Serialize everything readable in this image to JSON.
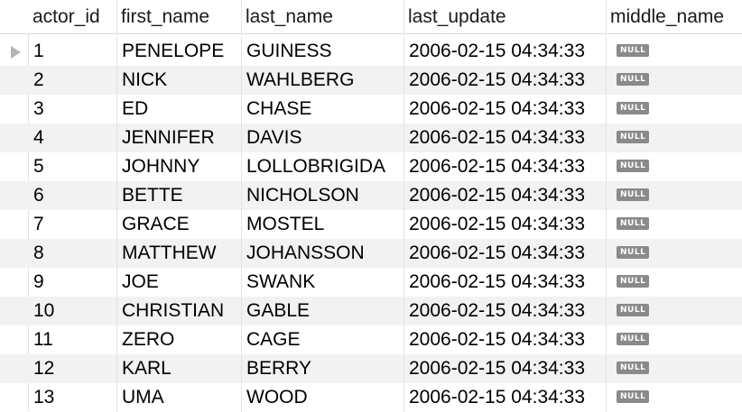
{
  "columns": [
    "actor_id",
    "first_name",
    "last_name",
    "last_update",
    "middle_name"
  ],
  "rows": [
    {
      "actor_id": "1",
      "first_name": "PENELOPE",
      "last_name": "GUINESS",
      "last_update": "2006-02-15 04:34:33",
      "middle_name": "NULL"
    },
    {
      "actor_id": "2",
      "first_name": "NICK",
      "last_name": "WAHLBERG",
      "last_update": "2006-02-15 04:34:33",
      "middle_name": "NULL"
    },
    {
      "actor_id": "3",
      "first_name": "ED",
      "last_name": "CHASE",
      "last_update": "2006-02-15 04:34:33",
      "middle_name": "NULL"
    },
    {
      "actor_id": "4",
      "first_name": "JENNIFER",
      "last_name": "DAVIS",
      "last_update": "2006-02-15 04:34:33",
      "middle_name": "NULL"
    },
    {
      "actor_id": "5",
      "first_name": "JOHNNY",
      "last_name": "LOLLOBRIGIDA",
      "last_update": "2006-02-15 04:34:33",
      "middle_name": "NULL"
    },
    {
      "actor_id": "6",
      "first_name": "BETTE",
      "last_name": "NICHOLSON",
      "last_update": "2006-02-15 04:34:33",
      "middle_name": "NULL"
    },
    {
      "actor_id": "7",
      "first_name": "GRACE",
      "last_name": "MOSTEL",
      "last_update": "2006-02-15 04:34:33",
      "middle_name": "NULL"
    },
    {
      "actor_id": "8",
      "first_name": "MATTHEW",
      "last_name": "JOHANSSON",
      "last_update": "2006-02-15 04:34:33",
      "middle_name": "NULL"
    },
    {
      "actor_id": "9",
      "first_name": "JOE",
      "last_name": "SWANK",
      "last_update": "2006-02-15 04:34:33",
      "middle_name": "NULL"
    },
    {
      "actor_id": "10",
      "first_name": "CHRISTIAN",
      "last_name": "GABLE",
      "last_update": "2006-02-15 04:34:33",
      "middle_name": "NULL"
    },
    {
      "actor_id": "11",
      "first_name": "ZERO",
      "last_name": "CAGE",
      "last_update": "2006-02-15 04:34:33",
      "middle_name": "NULL"
    },
    {
      "actor_id": "12",
      "first_name": "KARL",
      "last_name": "BERRY",
      "last_update": "2006-02-15 04:34:33",
      "middle_name": "NULL"
    },
    {
      "actor_id": "13",
      "first_name": "UMA",
      "last_name": "WOOD",
      "last_update": "2006-02-15 04:34:33",
      "middle_name": "NULL"
    }
  ],
  "current_row_indicator": "row-pointer-icon"
}
